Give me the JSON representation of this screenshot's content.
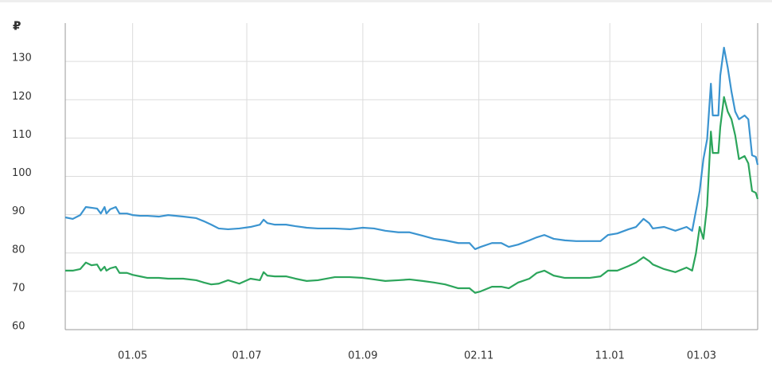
{
  "chart_data": {
    "type": "line",
    "y_label": "₽",
    "xlim": [
      -36,
      334
    ],
    "xticks": [
      {
        "value": 0,
        "label": "01.05"
      },
      {
        "value": 61,
        "label": "01.07"
      },
      {
        "value": 123,
        "label": "01.09"
      },
      {
        "value": 185,
        "label": "02.11"
      },
      {
        "value": 255,
        "label": "11.01"
      },
      {
        "value": 304,
        "label": "01.03"
      }
    ],
    "ylim": [
      60,
      140
    ],
    "yticks": [
      60,
      70,
      80,
      90,
      100,
      110,
      120,
      130
    ],
    "grid": true,
    "x": [
      -36,
      -32,
      -28,
      -25,
      -22,
      -19,
      -17,
      -15,
      -14,
      -12,
      -9,
      -7,
      -3,
      0,
      4,
      8,
      14,
      19,
      27,
      34,
      38,
      42,
      46,
      51,
      57,
      63,
      68,
      70,
      72,
      76,
      82,
      87,
      93,
      99,
      108,
      116,
      123,
      129,
      135,
      142,
      148,
      155,
      161,
      167,
      174,
      180,
      183,
      186,
      192,
      197,
      201,
      206,
      212,
      216,
      220,
      225,
      231,
      237,
      244,
      250,
      254,
      259,
      265,
      269,
      273,
      276,
      278,
      284,
      290,
      296,
      299,
      301,
      303,
      305,
      307,
      309,
      310,
      313,
      314,
      316,
      318,
      320,
      322,
      324,
      327,
      329,
      331,
      333,
      334
    ],
    "series": [
      {
        "color": "#3b94d0",
        "values": [
          89.3,
          88.9,
          89.9,
          92.0,
          91.8,
          91.6,
          90.3,
          92.0,
          90.3,
          91.4,
          92.0,
          90.3,
          90.3,
          89.9,
          89.7,
          89.7,
          89.5,
          89.9,
          89.5,
          89.1,
          88.3,
          87.4,
          86.4,
          86.2,
          86.4,
          86.8,
          87.4,
          88.7,
          87.8,
          87.4,
          87.4,
          87.0,
          86.6,
          86.4,
          86.4,
          86.2,
          86.6,
          86.4,
          85.8,
          85.4,
          85.4,
          84.5,
          83.7,
          83.3,
          82.6,
          82.6,
          81.0,
          81.6,
          82.6,
          82.6,
          81.6,
          82.2,
          83.3,
          84.1,
          84.7,
          83.7,
          83.3,
          83.1,
          83.1,
          83.1,
          84.7,
          85.1,
          86.2,
          86.8,
          88.9,
          87.8,
          86.4,
          86.8,
          85.8,
          86.8,
          85.8,
          91.0,
          96.2,
          104.5,
          109.7,
          124.2,
          115.9,
          115.9,
          126.3,
          133.6,
          128.4,
          122.1,
          116.9,
          114.9,
          115.9,
          114.9,
          105.5,
          105.1,
          103.0
        ]
      },
      {
        "color": "#2ca55b",
        "values": [
          75.4,
          75.4,
          75.8,
          77.5,
          76.8,
          77.0,
          75.4,
          76.4,
          75.4,
          76.0,
          76.4,
          74.8,
          74.8,
          74.3,
          73.9,
          73.5,
          73.5,
          73.3,
          73.3,
          72.9,
          72.3,
          71.8,
          72.0,
          72.9,
          72.0,
          73.3,
          72.9,
          75.0,
          74.1,
          73.9,
          73.9,
          73.3,
          72.7,
          72.9,
          73.7,
          73.7,
          73.5,
          73.1,
          72.7,
          72.9,
          73.1,
          72.7,
          72.3,
          71.8,
          70.8,
          70.8,
          69.6,
          70.0,
          71.2,
          71.2,
          70.8,
          72.3,
          73.3,
          74.8,
          75.4,
          74.1,
          73.5,
          73.5,
          73.5,
          73.9,
          75.4,
          75.4,
          76.6,
          77.5,
          78.9,
          77.9,
          77.0,
          75.8,
          75.0,
          76.2,
          75.4,
          79.9,
          86.8,
          83.7,
          92.4,
          111.7,
          106.1,
          106.1,
          112.8,
          120.7,
          116.9,
          114.9,
          110.7,
          104.5,
          105.3,
          103.4,
          96.2,
          95.7,
          94.1
        ]
      }
    ]
  }
}
